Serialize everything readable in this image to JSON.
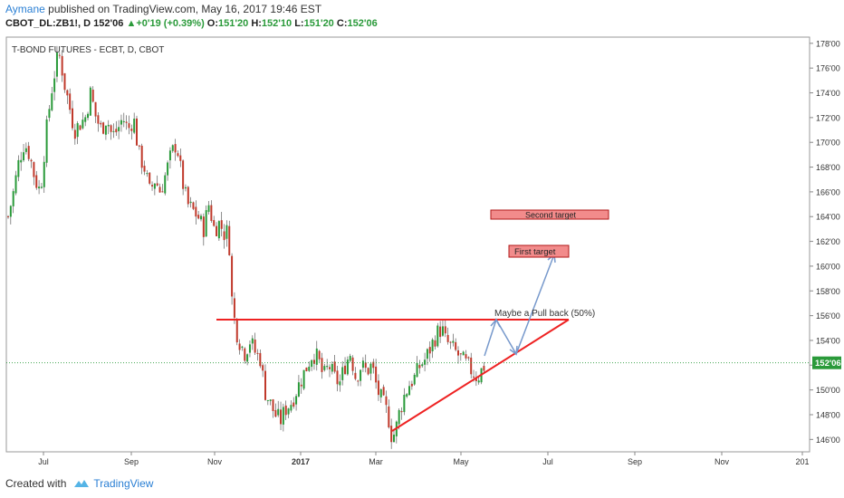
{
  "header": {
    "author": "Aymane",
    "published": "published on TradingView.com, May 16, 2017 19:46 EST",
    "symbol": "CBOT_DL:ZB1!, D",
    "last": "152'06",
    "change_arrow": "▲",
    "change": "+0'19 (+0.39%)",
    "o_label": "O:",
    "o_value": "151'20",
    "h_label": "H:",
    "h_value": "152'10",
    "l_label": "L:",
    "l_value": "151'20",
    "c_label": "C:",
    "c_value": "152'06"
  },
  "chart_title": "T-BOND FUTURES - ECBT, D, CBOT",
  "chart_data": {
    "type": "candlestick",
    "ylim": [
      145,
      178.5
    ],
    "y_ticks": [
      "178'00",
      "176'00",
      "174'00",
      "172'00",
      "170'00",
      "168'00",
      "166'00",
      "164'00",
      "162'00",
      "160'00",
      "158'00",
      "156'00",
      "154'00",
      "152'00",
      "150'00",
      "148'00",
      "146'00"
    ],
    "x_ticks": [
      "Jul",
      "Sep",
      "Nov",
      "2017",
      "Mar",
      "May",
      "Jul",
      "Sep",
      "Nov",
      "201"
    ],
    "last_price_label": "152'06",
    "last_price": 152.19,
    "up_color": "#2a9a3a",
    "down_color": "#c0392b",
    "price_path": [
      [
        0,
        164
      ],
      [
        6,
        166
      ],
      [
        12,
        168.5
      ],
      [
        18,
        170
      ],
      [
        24,
        169
      ],
      [
        30,
        167
      ],
      [
        36,
        166
      ],
      [
        42,
        170.5
      ],
      [
        48,
        174
      ],
      [
        54,
        176.5
      ],
      [
        58,
        177
      ],
      [
        62,
        175
      ],
      [
        68,
        173
      ],
      [
        74,
        171
      ],
      [
        80,
        171.5
      ],
      [
        86,
        172
      ],
      [
        92,
        174
      ],
      [
        98,
        172
      ],
      [
        104,
        171
      ],
      [
        110,
        172
      ],
      [
        116,
        170.5
      ],
      [
        122,
        171
      ],
      [
        128,
        172
      ],
      [
        134,
        171
      ],
      [
        140,
        172
      ],
      [
        146,
        169
      ],
      [
        152,
        168
      ],
      [
        158,
        166
      ],
      [
        164,
        167
      ],
      [
        170,
        166
      ],
      [
        176,
        167.5
      ],
      [
        182,
        169
      ],
      [
        188,
        170
      ],
      [
        194,
        167
      ],
      [
        200,
        165
      ],
      [
        206,
        164.5
      ],
      [
        212,
        164
      ],
      [
        218,
        163
      ],
      [
        224,
        165
      ],
      [
        230,
        163
      ],
      [
        236,
        163.5
      ],
      [
        242,
        162.5
      ],
      [
        246,
        163
      ],
      [
        250,
        157
      ],
      [
        254,
        155
      ],
      [
        258,
        154
      ],
      [
        264,
        153
      ],
      [
        270,
        154
      ],
      [
        276,
        153
      ],
      [
        282,
        152.5
      ],
      [
        286,
        150
      ],
      [
        292,
        149
      ],
      [
        298,
        148
      ],
      [
        304,
        147.5
      ],
      [
        310,
        148.5
      ],
      [
        316,
        149
      ],
      [
        322,
        150
      ],
      [
        328,
        151
      ],
      [
        334,
        152
      ],
      [
        340,
        153
      ],
      [
        346,
        152.5
      ],
      [
        352,
        151
      ],
      [
        358,
        152
      ],
      [
        364,
        151
      ],
      [
        370,
        150.5
      ],
      [
        376,
        152
      ],
      [
        382,
        153
      ],
      [
        388,
        151
      ],
      [
        394,
        152
      ],
      [
        400,
        151.5
      ],
      [
        406,
        152
      ],
      [
        412,
        150
      ],
      [
        418,
        149
      ],
      [
        424,
        148
      ],
      [
        428,
        146.3
      ],
      [
        432,
        146.5
      ],
      [
        436,
        148
      ],
      [
        442,
        149.5
      ],
      [
        448,
        150.5
      ],
      [
        454,
        151
      ],
      [
        460,
        152
      ],
      [
        466,
        152.5
      ],
      [
        472,
        153.5
      ],
      [
        478,
        154.5
      ],
      [
        484,
        155
      ],
      [
        488,
        154
      ],
      [
        494,
        153.5
      ],
      [
        500,
        153
      ],
      [
        506,
        152.5
      ],
      [
        512,
        152
      ],
      [
        518,
        151.5
      ],
      [
        524,
        151
      ],
      [
        530,
        151.8
      ],
      [
        534,
        152.2
      ]
    ],
    "annotations": {
      "resistance_line": {
        "x_start": "Nov",
        "price": 155.2
      },
      "triangle_label": "Maybe a Pull back (50%)",
      "first_target": "First target",
      "second_target": "Second target",
      "first_target_price": 161,
      "second_target_price": 164,
      "support_line_from": 145.8,
      "support_line_to": 155.2
    }
  },
  "footer": {
    "created_with": "Created with",
    "brand": "TradingView"
  },
  "colors": {
    "accent": "#2a7fd4",
    "resistance": "#ee2222",
    "target_fill": "#f28b8b",
    "target_border": "#b01818",
    "projection": "#7799cc"
  }
}
